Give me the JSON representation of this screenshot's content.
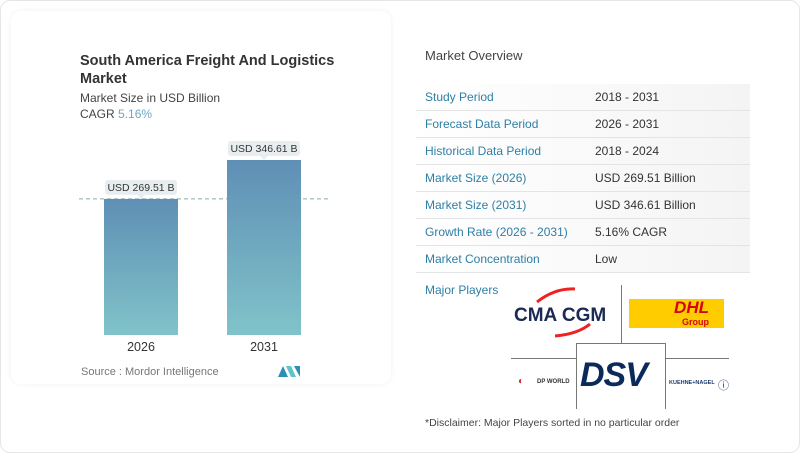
{
  "chart_data": {
    "type": "bar",
    "title": "South America Freight And Logistics Market",
    "subtitle": "Market Size in USD Billion",
    "cagr_label": "CAGR",
    "cagr_value": "5.16%",
    "categories": [
      "2026",
      "2031"
    ],
    "values": [
      269.51,
      346.61
    ],
    "data_labels": [
      "USD 269.51 B",
      "USD 346.61 B"
    ],
    "ylim": [
      0,
      346.61
    ],
    "colors": {
      "bar_top": "#5f8fb5",
      "bar_bottom": "#80c3c9"
    },
    "source": "Source :  Mordor Intelligence"
  },
  "overview": {
    "title": "Market Overview",
    "rows": [
      {
        "label": "Study Period",
        "value": "2018 - 2031"
      },
      {
        "label": "Forecast Data Period",
        "value": "2026 - 2031"
      },
      {
        "label": "Historical Data Period",
        "value": "2018 - 2024"
      },
      {
        "label": "Market Size (2026)",
        "value": "USD 269.51 Billion"
      },
      {
        "label": "Market Size (2031)",
        "value": "USD 346.61 Billion"
      },
      {
        "label": "Growth Rate (2026 - 2031)",
        "value": "5.16% CAGR"
      },
      {
        "label": "Market Concentration",
        "value": "Low"
      }
    ]
  },
  "players": {
    "title": "Major Players",
    "logos": [
      "CMA CGM",
      "DHL Group",
      "DSV",
      "DP WORLD",
      "KUEHNE+NAGEL"
    ],
    "disclaimer": "*Disclaimer: Major Players sorted in no particular order"
  }
}
